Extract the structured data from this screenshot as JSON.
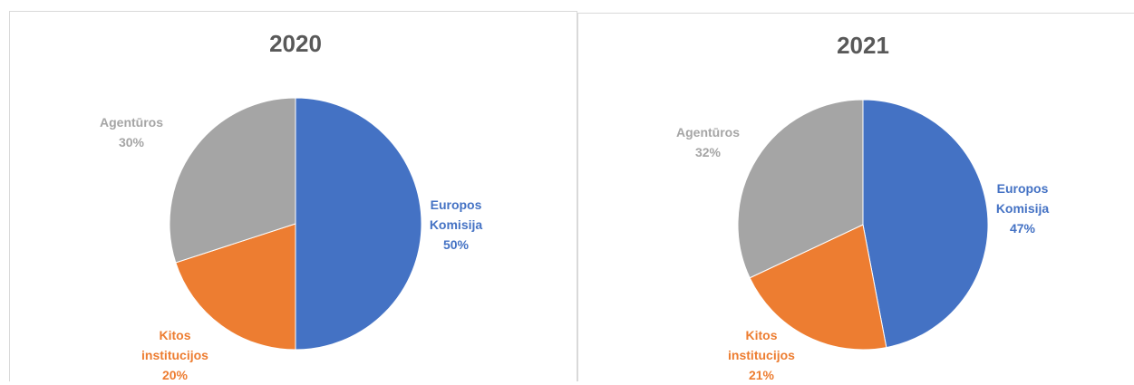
{
  "chart_data": [
    {
      "type": "pie",
      "title": "2020",
      "categories": [
        "Europos Komisija",
        "Kitos institucijos",
        "Agentūros"
      ],
      "values": [
        50,
        20,
        30
      ],
      "value_labels": [
        "50%",
        "20%",
        "30%"
      ],
      "colors": [
        "#4472c4",
        "#ed7d31",
        "#a5a5a5"
      ]
    },
    {
      "type": "pie",
      "title": "2021",
      "categories": [
        "Europos Komisija",
        "Kitos institucijos",
        "Agentūros"
      ],
      "values": [
        47,
        21,
        32
      ],
      "value_labels": [
        "47%",
        "21%",
        "32%"
      ],
      "colors": [
        "#4472c4",
        "#ed7d31",
        "#a5a5a5"
      ]
    }
  ]
}
